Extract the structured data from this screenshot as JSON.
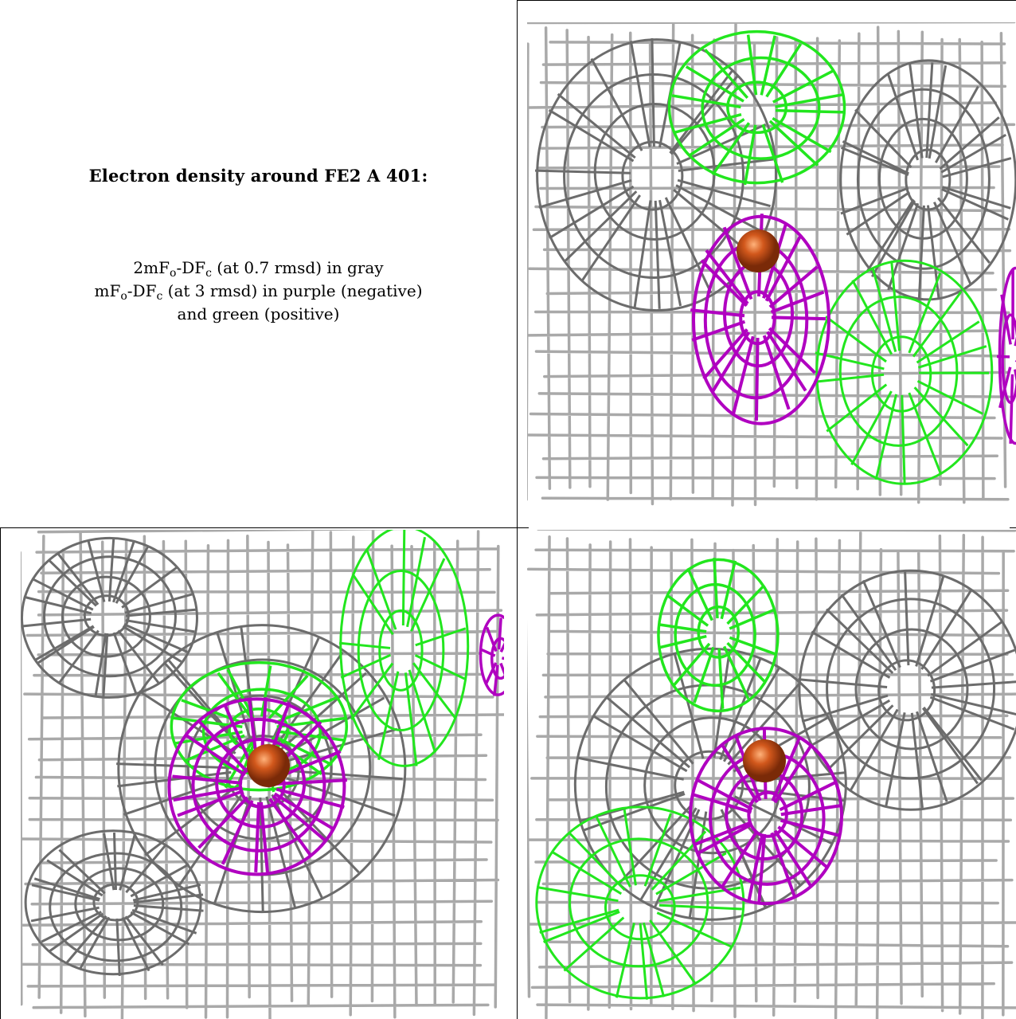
{
  "caption": {
    "title": "Electron density around FE2 A 401:",
    "line1": {
      "lead": "2mF",
      "sub1": "o",
      "mid": "-DF",
      "sub2": "c",
      "rest": " (at 0.7 rmsd) in gray"
    },
    "line2": {
      "lead": "mF",
      "sub1": "o",
      "mid": "-DF",
      "sub2": "c",
      "rest": " (at 3 rmsd) in purple (negative)"
    },
    "line3": "and green (positive)"
  },
  "colors": {
    "gray_mesh": "#9a9a9a",
    "gray_mesh_dark": "#6c6c6c",
    "negative_mesh": "#b000c0",
    "positive_mesh": "#22e61e",
    "iron_atom": "#d2581c"
  },
  "panels": [
    {
      "view": "top-right"
    },
    {
      "view": "bottom-left"
    },
    {
      "view": "bottom-right"
    }
  ]
}
